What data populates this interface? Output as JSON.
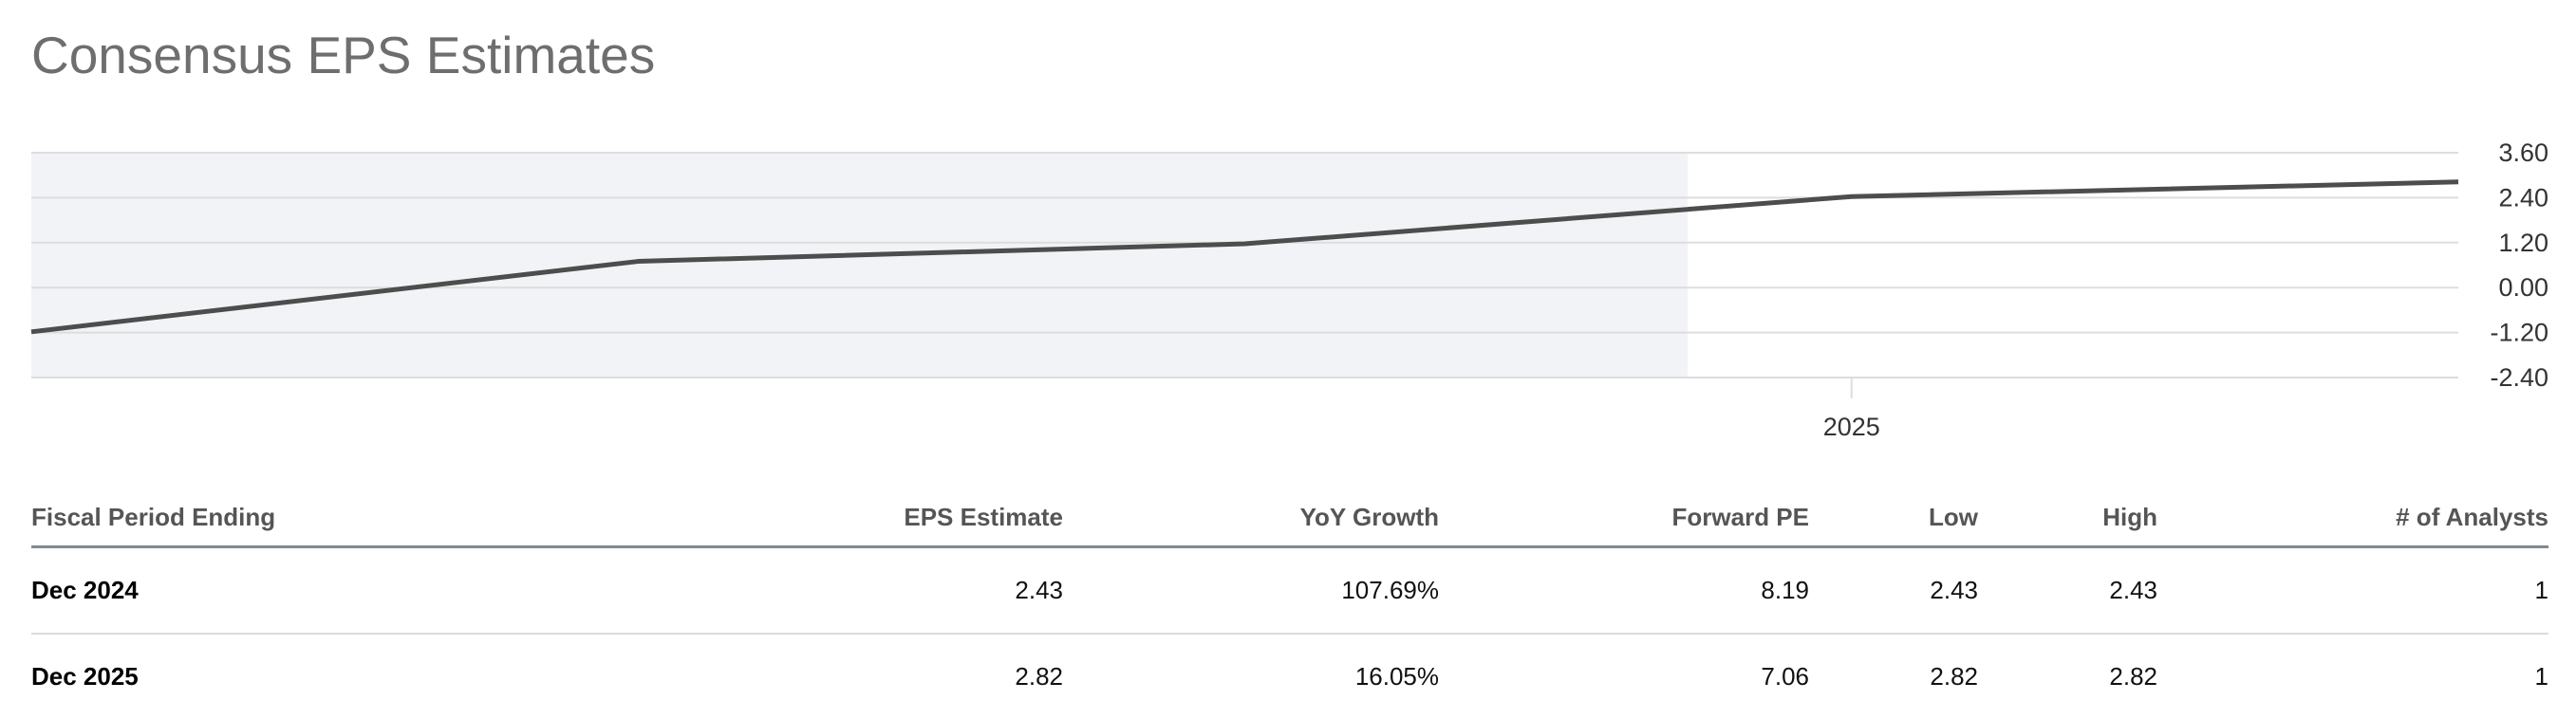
{
  "title": "Consensus EPS Estimates",
  "chart_data": {
    "type": "line",
    "values": [
      -1.18,
      0.7,
      1.17,
      2.43,
      2.82
    ],
    "x_tick_labels": [
      {
        "index": 3,
        "label": "2025"
      }
    ],
    "ylim": [
      -2.4,
      3.6
    ],
    "yticks": [
      "3.60",
      "2.40",
      "1.20",
      "0.00",
      "-1.20",
      "-2.40"
    ],
    "ytick_values": [
      3.6,
      2.4,
      1.2,
      0,
      -1.2,
      -2.4
    ],
    "grid": true,
    "y_axis_side": "right",
    "historical_shading_until_index": 2.73,
    "colors": {
      "line": "#4d4d4d",
      "shade": "#f2f3f7",
      "grid": "#dddddd"
    }
  },
  "table": {
    "headers": [
      "Fiscal Period Ending",
      "EPS Estimate",
      "YoY Growth",
      "Forward PE",
      "Low",
      "High",
      "# of Analysts"
    ],
    "rows": [
      [
        "Dec 2024",
        "2.43",
        "107.69%",
        "8.19",
        "2.43",
        "2.43",
        "1"
      ],
      [
        "Dec 2025",
        "2.82",
        "16.05%",
        "7.06",
        "2.82",
        "2.82",
        "1"
      ]
    ]
  }
}
